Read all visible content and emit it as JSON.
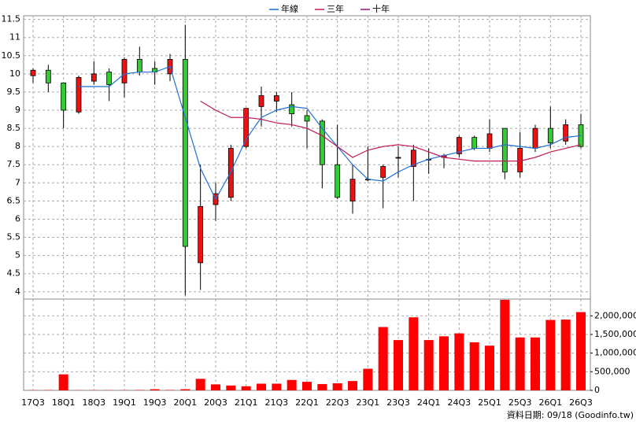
{
  "chart_data": {
    "type": "candlestick",
    "categories": [
      "17Q3",
      null,
      "18Q1",
      null,
      "18Q3",
      null,
      "19Q1",
      null,
      "19Q3",
      null,
      "20Q1",
      null,
      "20Q3",
      null,
      "21Q1",
      null,
      "21Q3",
      null,
      "22Q1",
      null,
      "22Q3",
      null,
      "23Q1",
      null,
      "23Q3",
      null,
      "24Q1",
      null,
      "24Q3",
      null,
      "25Q1",
      null,
      "25Q3",
      null,
      "26Q1",
      null,
      "26Q3"
    ],
    "open": [
      9.95,
      10.1,
      9.75,
      8.95,
      9.8,
      10.05,
      9.75,
      10.4,
      10.15,
      10.0,
      10.4,
      4.8,
      6.4,
      6.6,
      8.0,
      9.1,
      9.25,
      9.15,
      8.85,
      8.7,
      7.5,
      6.5,
      7.1,
      7.15,
      7.7,
      7.45,
      7.65,
      7.7,
      7.8,
      8.25,
      7.95,
      8.5,
      7.3,
      7.95,
      8.5,
      8.15,
      8.6
    ],
    "high": [
      10.15,
      10.25,
      9.75,
      9.95,
      10.35,
      10.15,
      10.45,
      10.75,
      10.35,
      10.55,
      11.35,
      7.5,
      7.0,
      8.05,
      9.05,
      9.65,
      9.5,
      9.5,
      9.0,
      8.75,
      8.6,
      7.5,
      8.0,
      7.5,
      8.0,
      8.05,
      7.95,
      7.8,
      8.3,
      8.3,
      8.75,
      8.5,
      8.4,
      8.6,
      9.1,
      8.75,
      8.9
    ],
    "low": [
      9.75,
      9.5,
      8.5,
      8.9,
      9.7,
      9.25,
      9.35,
      9.95,
      9.7,
      9.8,
      3.9,
      4.05,
      5.95,
      6.5,
      7.95,
      8.55,
      8.95,
      8.55,
      7.95,
      6.85,
      6.55,
      6.15,
      7.05,
      6.3,
      7.15,
      6.5,
      7.25,
      7.4,
      7.7,
      7.9,
      7.85,
      7.1,
      7.15,
      7.85,
      7.95,
      8.05,
      7.95
    ],
    "close": [
      10.1,
      9.75,
      9.0,
      9.9,
      10.0,
      9.7,
      10.4,
      10.05,
      10.05,
      10.4,
      5.25,
      6.35,
      6.7,
      7.95,
      9.05,
      9.4,
      9.4,
      8.9,
      8.7,
      7.5,
      6.6,
      7.1,
      7.1,
      7.45,
      7.7,
      7.9,
      7.65,
      7.75,
      8.25,
      7.95,
      8.35,
      7.3,
      7.95,
      8.5,
      8.1,
      8.6,
      8.0
    ],
    "up_color": "#ee1111",
    "down_color": "#33cc33",
    "series": [
      {
        "name": "年線",
        "color": "#1f6fd6",
        "values": [
          null,
          null,
          null,
          9.65,
          9.65,
          9.65,
          10.0,
          10.05,
          10.05,
          10.2,
          8.8,
          7.4,
          6.55,
          7.3,
          8.2,
          8.8,
          9.0,
          9.1,
          9.05,
          8.5,
          8.0,
          7.5,
          7.1,
          7.05,
          7.3,
          7.5,
          7.65,
          7.75,
          7.85,
          7.95,
          7.95,
          8.05,
          8.0,
          7.95,
          8.05,
          8.25,
          8.3
        ]
      },
      {
        "name": "三年",
        "color": "#c2185b",
        "values": [
          null,
          null,
          null,
          null,
          null,
          null,
          null,
          null,
          null,
          null,
          null,
          9.25,
          9.0,
          8.8,
          8.8,
          8.75,
          8.65,
          8.6,
          8.5,
          8.3,
          8.0,
          7.7,
          7.9,
          8.0,
          8.05,
          8.0,
          7.85,
          7.7,
          7.65,
          7.6,
          7.6,
          7.6,
          7.6,
          7.7,
          7.85,
          7.95,
          8.05
        ]
      },
      {
        "name": "十年",
        "color": "#8e1a6e",
        "values": [
          null,
          null,
          null,
          null,
          null,
          null,
          null,
          null,
          null,
          null,
          null,
          null,
          null,
          null,
          null,
          null,
          null,
          null,
          null,
          null,
          null,
          null,
          null,
          null,
          null,
          null,
          null,
          null,
          null,
          null,
          null,
          null,
          null,
          null,
          null,
          null,
          null
        ]
      }
    ],
    "ylim": [
      3.8,
      11.6
    ],
    "yticks": [
      4,
      4.5,
      5,
      5.5,
      6,
      6.5,
      7,
      7.5,
      8,
      8.5,
      9,
      9.5,
      10,
      10.5,
      11,
      11.5
    ],
    "grid": true,
    "volume": {
      "color": "#ff0000",
      "values": [
        5000,
        8000,
        430000,
        5000,
        5000,
        5000,
        5000,
        10000,
        30000,
        10000,
        30000,
        310000,
        160000,
        130000,
        110000,
        180000,
        180000,
        280000,
        230000,
        170000,
        190000,
        250000,
        580000,
        1700000,
        1350000,
        1960000,
        1350000,
        1450000,
        1530000,
        1290000,
        1200000,
        2430000,
        1420000,
        1420000,
        1890000,
        1900000,
        2100000
      ],
      "ylim": [
        0,
        2450000
      ],
      "yticks": [
        0,
        {
          "value": 500000,
          "label": "500,000"
        },
        {
          "value": 1000000,
          "label": "1,000,000"
        },
        {
          "value": 1500000,
          "label": "1,500,000"
        },
        {
          "value": 2000000,
          "label": "2,000,000"
        }
      ]
    },
    "note": "資料日期: 09/18  (Goodinfo.tw)"
  }
}
